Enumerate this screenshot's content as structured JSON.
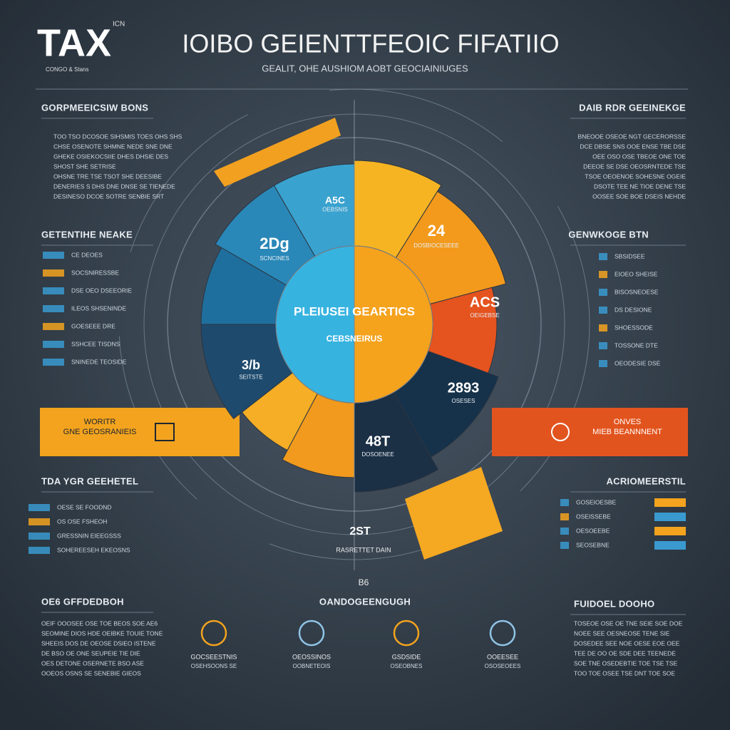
{
  "header": {
    "logo": "TAX",
    "logo_sup": "ICN",
    "logo_sub": "CONGO & Stans",
    "title": "IOIBO GEIENTTFEOIC FIFATIIO",
    "subtitle": "GEALIT, OHE AUSHIOM AOBT GEOCIAINIUGES"
  },
  "left_sections": [
    {
      "heading": "GORPMEEICSIW BONS",
      "lines": [
        "TOO TSO DCOSOE SIHSMIS TOES OHS SHS",
        "CHSE OSENOTE SHMNE NEDE SNE DNE",
        "GHEKE OSIEKOCSIIE DHES DHSIE DES",
        "SHOST SHE SETRISE",
        "OHSNE TRE TSE TSOT SHE DEESIBE",
        "DENERIES S DHS DNE DNSE SE TIENEDE",
        "DESINESO DCOE SOTRE SENBIE SRT"
      ]
    },
    {
      "heading": "GETENTIHE NEAKE",
      "lines": [
        "CE DEOES",
        "SOCSNIRESSBE",
        "DSE OEO DSEEORIE",
        "ILEOS SHSENINDE",
        "GOESEEE DRE",
        "SSHCEE TISDNS",
        "SNINEDE TEOSIDE"
      ]
    },
    {
      "heading": "TDA YGR GEEHETEL",
      "lines": [
        "OESE SE FOODND",
        "OS OSE FSHEOH",
        "GRESSNIN EIEEGSSS",
        "SOHEREESEH EKEOSNS"
      ]
    },
    {
      "heading": "OE6 GFFDEDBOH",
      "lines": [
        "OEIF OOOSEE OSE TOE BEOS SOE AE6",
        "SEOMINE DIOS HDE OEIBKE TOUIE TONE",
        "SHEEIS DOS DE OEOSE DSIEO ISTENE",
        "DE BSO OE ONE SEUPEIE TIE DIE",
        "OES DETONE OSERNETE BSO ASE",
        "OOEOS OSNS SE SENEBIE GIEOS"
      ]
    }
  ],
  "right_sections": [
    {
      "heading": "DAIB RDR GEEINEKGE",
      "lines": [
        "BNEOOE OSEOE NGT GECERORSSE",
        "DCE DBSE SNS OOE ENSE TBE DSE",
        "OEE OSO OSE TBEOE ONE TOE",
        "DEEOE SE DSE OEOSRNTEDE TSE",
        "TSOE OEOENOE SOHESNE OGEIE",
        "DSOTE TEE NE TIOE DENE TSE",
        "OOSEE SOE BOE DSEIS NEHDE"
      ]
    },
    {
      "heading": "GENWKOGE BTN",
      "lines": [
        "SBSIDSEE",
        "EIOEO SHEISE",
        "BISOSNEOESE",
        "DS DESIONE",
        "SHOESSODE",
        "TOSSONE DTE",
        "OEODESIE DSE"
      ]
    },
    {
      "heading": "ACRIOMEERSTIL",
      "lines": [
        "GOSEIOESBE",
        "OSEISSEBE",
        "OESOEEBE",
        "SEOSEBNE"
      ]
    },
    {
      "heading": "FUIDOEL DOOHO",
      "lines": [
        "TOSEOE OSE OE TNE SEIE SOE DOE",
        "NOEE SEE OESNEOSE TENE SIE",
        "DOSEDEE SEE NOE OESE EOE OEE",
        "TEE DE OO OE SDE DEE TEENEDE",
        "SOE TNE OSEDEBTIE TOE TSE TSE",
        "TOO TOE OSEE TSE DNT TOE SOE"
      ]
    }
  ],
  "center": {
    "title": "PLEIUSEI GEARTICS",
    "caption": "CEBSNEIRUS",
    "labels": [
      {
        "value": "2Dg",
        "text": "SCNCINES"
      },
      {
        "value": "A5C",
        "text": "OEBSNIS"
      },
      {
        "value": "24",
        "text": "DOSBIOCESEEE"
      },
      {
        "value": "ACS",
        "text": "OEIGEBSE"
      },
      {
        "value": "2893",
        "text": "OSESES"
      },
      {
        "value": "48T",
        "text": "DOSOENEE"
      },
      {
        "value": "3/b",
        "text": "SEITSTE"
      }
    ]
  },
  "banners": {
    "left": {
      "title": "WORITR",
      "text": "GNE GEOSRANIEIS"
    },
    "right": {
      "title": "ONVES",
      "text": "MIEB BEANNNENT"
    }
  },
  "lower": {
    "value": "2ST",
    "text": "RASRETTET DAIN",
    "mark": "B6"
  },
  "bottom": {
    "heading": "OANDOGEENGUGH",
    "items": [
      {
        "title": "GOCSEESTNIS",
        "text": "OSEHSOONS SE"
      },
      {
        "title": "OEOSSINOS",
        "text": "OOBNETEOIS"
      },
      {
        "title": "GSDSIDE",
        "text": "OSEOBNES"
      },
      {
        "title": "OOEESEE",
        "text": "OSOSEOEES"
      }
    ]
  }
}
